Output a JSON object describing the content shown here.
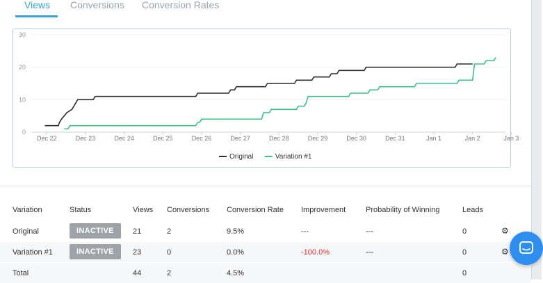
{
  "tabs": [
    {
      "label": "Views",
      "active": true
    },
    {
      "label": "Conversions",
      "active": false
    },
    {
      "label": "Conversion Rates",
      "active": false
    }
  ],
  "chart_data": {
    "type": "line",
    "step": true,
    "title": "",
    "xlabel": "",
    "ylabel": "",
    "ylim": [
      0,
      30
    ],
    "y_ticks": [
      "0",
      "10",
      "20",
      "30"
    ],
    "x_ticks": [
      "Dec 22",
      "Dec 23",
      "Dec 24",
      "Dec 25",
      "Dec 26",
      "Dec 27",
      "Dec 28",
      "Dec 29",
      "Dec 30",
      "Dec 31",
      "Jan 1",
      "Jan 2",
      "Jan 3"
    ],
    "grid": true,
    "legend_position": "bottom-center",
    "series": [
      {
        "name": "Original",
        "color": "#2d2d2d",
        "points": [
          [
            21.95,
            2
          ],
          [
            22.3,
            2
          ],
          [
            22.33,
            3
          ],
          [
            22.38,
            4
          ],
          [
            22.45,
            5
          ],
          [
            22.52,
            6
          ],
          [
            22.65,
            7
          ],
          [
            22.8,
            10
          ],
          [
            23.2,
            10
          ],
          [
            23.25,
            11
          ],
          [
            25.85,
            11
          ],
          [
            25.9,
            12
          ],
          [
            26.7,
            12
          ],
          [
            26.75,
            13
          ],
          [
            26.85,
            13
          ],
          [
            26.9,
            14
          ],
          [
            27.65,
            14
          ],
          [
            27.7,
            15
          ],
          [
            28.4,
            15
          ],
          [
            28.45,
            16
          ],
          [
            28.85,
            16
          ],
          [
            28.9,
            17
          ],
          [
            29.3,
            17
          ],
          [
            29.35,
            18
          ],
          [
            29.5,
            18
          ],
          [
            29.55,
            19
          ],
          [
            30.2,
            19
          ],
          [
            30.25,
            20
          ],
          [
            32.55,
            20
          ],
          [
            32.6,
            21
          ],
          [
            33.0,
            21
          ]
        ]
      },
      {
        "name": "Variation #1",
        "color": "#3cc08a",
        "points": [
          [
            22.45,
            1
          ],
          [
            22.55,
            1
          ],
          [
            22.6,
            2
          ],
          [
            25.85,
            2
          ],
          [
            25.9,
            3
          ],
          [
            25.95,
            3
          ],
          [
            26.0,
            4
          ],
          [
            27.55,
            4
          ],
          [
            27.6,
            6
          ],
          [
            27.75,
            6
          ],
          [
            27.8,
            7
          ],
          [
            28.45,
            7
          ],
          [
            28.5,
            8
          ],
          [
            28.65,
            8
          ],
          [
            28.7,
            9
          ],
          [
            28.75,
            11
          ],
          [
            29.8,
            11
          ],
          [
            29.85,
            12
          ],
          [
            30.3,
            12
          ],
          [
            30.35,
            13
          ],
          [
            30.55,
            13
          ],
          [
            30.6,
            14
          ],
          [
            31.5,
            14
          ],
          [
            31.55,
            15
          ],
          [
            32.6,
            15
          ],
          [
            32.65,
            16
          ],
          [
            33.0,
            16
          ],
          [
            33.05,
            21
          ],
          [
            33.3,
            21
          ],
          [
            33.35,
            22
          ],
          [
            33.55,
            22
          ],
          [
            33.6,
            23
          ]
        ]
      }
    ]
  },
  "table": {
    "headers": [
      "Variation",
      "Status",
      "Views",
      "Conversions",
      "Conversion Rate",
      "Improvement",
      "Probability of Winning",
      "Leads"
    ],
    "rows": [
      {
        "variation": "Original",
        "status": "INACTIVE",
        "views": "21",
        "conversions": "2",
        "rate": "9.5%",
        "improvement": "---",
        "probability": "---",
        "leads": "0"
      },
      {
        "variation": "Variation #1",
        "status": "INACTIVE",
        "views": "23",
        "conversions": "0",
        "rate": "0.0%",
        "improvement": "-100.0%",
        "probability": "---",
        "leads": "0"
      },
      {
        "variation": "Total",
        "status": "",
        "views": "44",
        "conversions": "2",
        "rate": "4.5%",
        "improvement": "",
        "probability": "",
        "leads": "0"
      }
    ]
  },
  "icons": {
    "gear": "gear-icon",
    "chat": "chat-bubble-icon"
  },
  "colors": {
    "accent": "#3aa3dc",
    "badge": "#9ea3a8",
    "negative": "#e02c2c",
    "chat": "#2e8ef0"
  }
}
